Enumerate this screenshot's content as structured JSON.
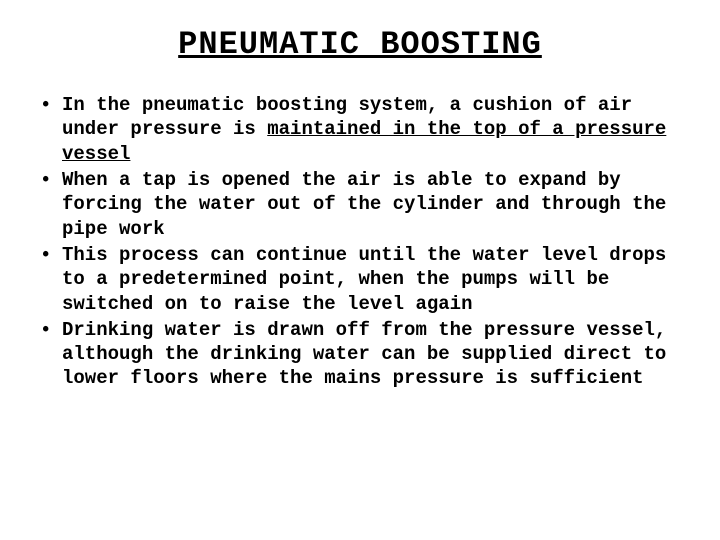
{
  "title": "PNEUMATIC BOOSTING",
  "bullets": [
    {
      "pre": "In the pneumatic boosting system, a cushion of air under pressure is ",
      "underlined": "maintained in the top of a pressure vessel",
      "post": ""
    },
    {
      "pre": "When a tap is opened the air is able to expand by forcing the water out of the cylinder and through the pipe work",
      "underlined": "",
      "post": ""
    },
    {
      "pre": "This process can continue until the water level drops to a predetermined point, when the pumps will be switched on to raise the level again",
      "underlined": "",
      "post": ""
    },
    {
      "pre": "Drinking water is drawn off from the pressure vessel, although the drinking water can be supplied direct to lower floors where the mains pressure is sufficient",
      "underlined": "",
      "post": ""
    }
  ],
  "colors": {
    "background": "#ffffff",
    "text": "#000000"
  },
  "typography": {
    "font_family": "Courier New, monospace",
    "title_fontsize": 32,
    "body_fontsize": 19,
    "title_weight": "bold",
    "body_weight": "bold"
  }
}
